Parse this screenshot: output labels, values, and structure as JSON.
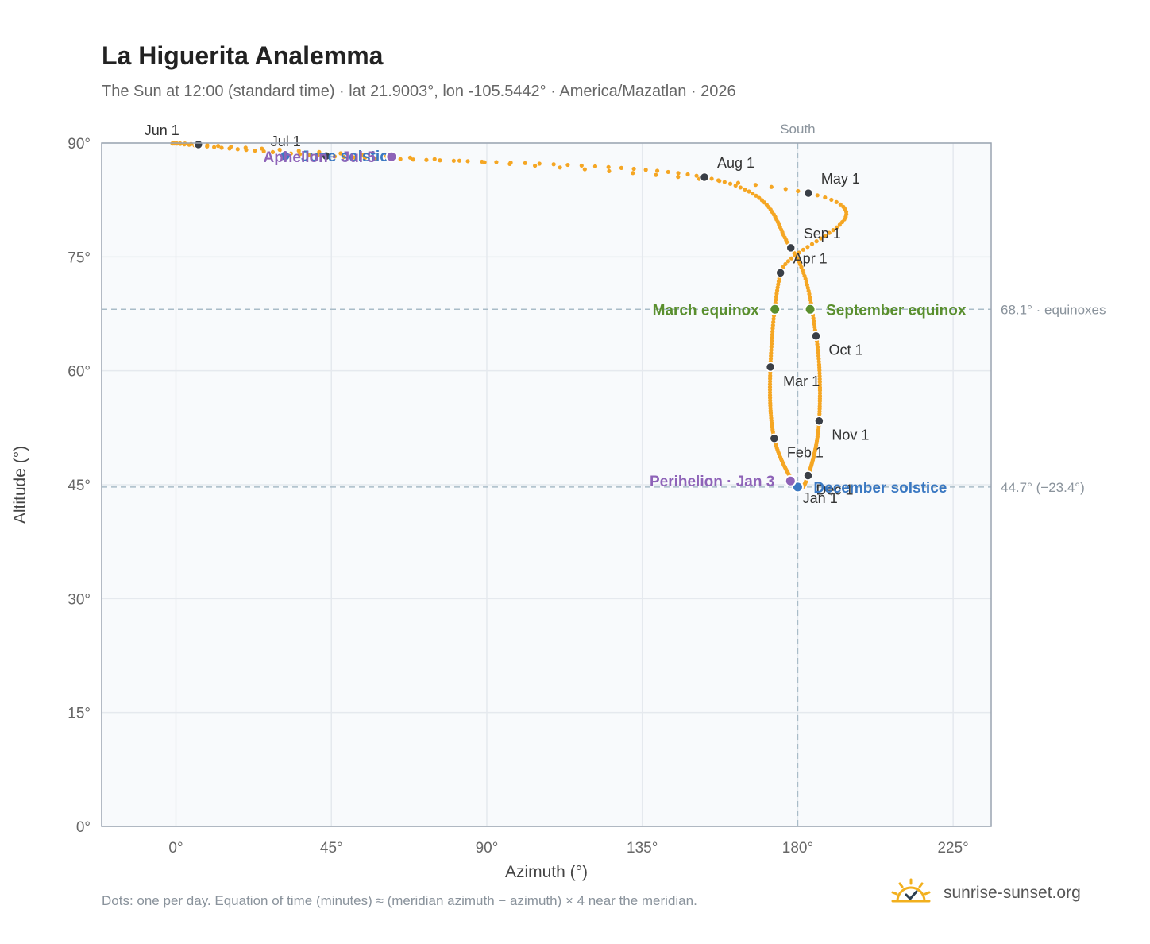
{
  "header": {
    "title": "La Higuerita Analemma",
    "subtitle": "The Sun at 12:00 (standard time) · lat 21.9003°, lon -105.5442° · America/Mazatlan · 2026"
  },
  "footnote": "Dots: one per day. Equation of time (minutes) ≈ (meridian azimuth − azimuth) × 4 near the meridian.",
  "brand": {
    "name": "sunrise-sunset.org",
    "icon": "sun-logo-icon",
    "color": "#f2b01e"
  },
  "colors": {
    "curve": "#f5a623",
    "month_marker": "#3a3f47",
    "equinox": "#5a8f2e",
    "solstice": "#3a78c2",
    "apsis": "#8e63b8",
    "plot_bg": "#f8fafc",
    "grid": "#e5e9ee",
    "axis": "#9aa4b1"
  },
  "chart_data": {
    "type": "scatter",
    "title": "La Higuerita Analemma",
    "xlabel": "Azimuth (°)",
    "ylabel": "Altitude (°)",
    "xlim": [
      -21.5,
      236
    ],
    "ylim": [
      0,
      90
    ],
    "x_ticks": [
      0,
      45,
      90,
      135,
      180,
      225
    ],
    "x_tick_labels": [
      "0°",
      "45°",
      "90°",
      "135°",
      "180°",
      "225°"
    ],
    "y_ticks": [
      0,
      15,
      30,
      45,
      60,
      75,
      90
    ],
    "y_tick_labels": [
      "0°",
      "15°",
      "30°",
      "45°",
      "60°",
      "75°",
      "90°"
    ],
    "grid": true,
    "south": {
      "azimuth": 180,
      "label": "South"
    },
    "reference_lines": [
      {
        "altitude": 68.1,
        "label": "68.1° · equinoxes"
      },
      {
        "altitude": 44.7,
        "label": "44.7° (−23.4°)"
      }
    ],
    "daily_path_keypoints": [
      {
        "month": "Jan",
        "day": 1,
        "azimuth": 179.6,
        "altitude": 44.9
      },
      {
        "month": "Feb",
        "day": 1,
        "azimuth": 173.2,
        "altitude": 51.1
      },
      {
        "month": "Mar",
        "day": 1,
        "azimuth": 172.1,
        "altitude": 60.5
      },
      {
        "month": "Apr",
        "day": 1,
        "azimuth": 175.0,
        "altitude": 72.9
      },
      {
        "month": "May",
        "day": 1,
        "azimuth": 183.1,
        "altitude": 83.4
      },
      {
        "month": "Jun",
        "day": 1,
        "azimuth": 6.5,
        "altitude": 89.8
      },
      {
        "month": "Jul",
        "day": 1,
        "azimuth": 43.5,
        "altitude": 88.3
      },
      {
        "month": "Aug",
        "day": 1,
        "azimuth": 153.0,
        "altitude": 85.5
      },
      {
        "month": "Sep",
        "day": 1,
        "azimuth": 178.0,
        "altitude": 76.2
      },
      {
        "month": "Oct",
        "day": 1,
        "azimuth": 185.3,
        "altitude": 64.6
      },
      {
        "month": "Nov",
        "day": 1,
        "azimuth": 186.2,
        "altitude": 53.4
      },
      {
        "month": "Dec",
        "day": 1,
        "azimuth": 183.0,
        "altitude": 46.2
      }
    ],
    "month_markers": [
      {
        "label": "Jan 1",
        "azimuth": 179.6,
        "altitude": 44.9
      },
      {
        "label": "Feb 1",
        "azimuth": 173.2,
        "altitude": 51.1
      },
      {
        "label": "Mar 1",
        "azimuth": 172.1,
        "altitude": 60.5
      },
      {
        "label": "Apr 1",
        "azimuth": 175.0,
        "altitude": 72.9
      },
      {
        "label": "May 1",
        "azimuth": 183.1,
        "altitude": 83.4
      },
      {
        "label": "Jun 1",
        "azimuth": 6.5,
        "altitude": 89.8
      },
      {
        "label": "Jul 1",
        "azimuth": 43.5,
        "altitude": 88.3
      },
      {
        "label": "Aug 1",
        "azimuth": 153.0,
        "altitude": 85.5
      },
      {
        "label": "Sep 1",
        "azimuth": 178.0,
        "altitude": 76.2
      },
      {
        "label": "Oct 1",
        "azimuth": 185.3,
        "altitude": 64.6
      },
      {
        "label": "Nov 1",
        "azimuth": 186.2,
        "altitude": 53.4
      },
      {
        "label": "Dec 1",
        "azimuth": 183.0,
        "altitude": 46.2
      }
    ],
    "events": [
      {
        "label": "March equinox",
        "azimuth": 173.4,
        "altitude": 68.1,
        "kind": "equinox",
        "side": "left"
      },
      {
        "label": "September equinox",
        "azimuth": 183.6,
        "altitude": 68.1,
        "kind": "equinox",
        "side": "right"
      },
      {
        "label": "December solstice",
        "azimuth": 180.0,
        "altitude": 44.7,
        "kind": "solstice",
        "side": "right"
      },
      {
        "label": "June solstice",
        "azimuth": 31.6,
        "altitude": 88.3,
        "kind": "solstice",
        "side": "right"
      },
      {
        "label": "Perihelion · Jan 3",
        "azimuth": 177.9,
        "altitude": 45.5,
        "kind": "apsis",
        "side": "left"
      },
      {
        "label": "Aphelion · Jul 5",
        "azimuth": 62.4,
        "altitude": 88.2,
        "kind": "apsis",
        "side": "left"
      }
    ]
  }
}
